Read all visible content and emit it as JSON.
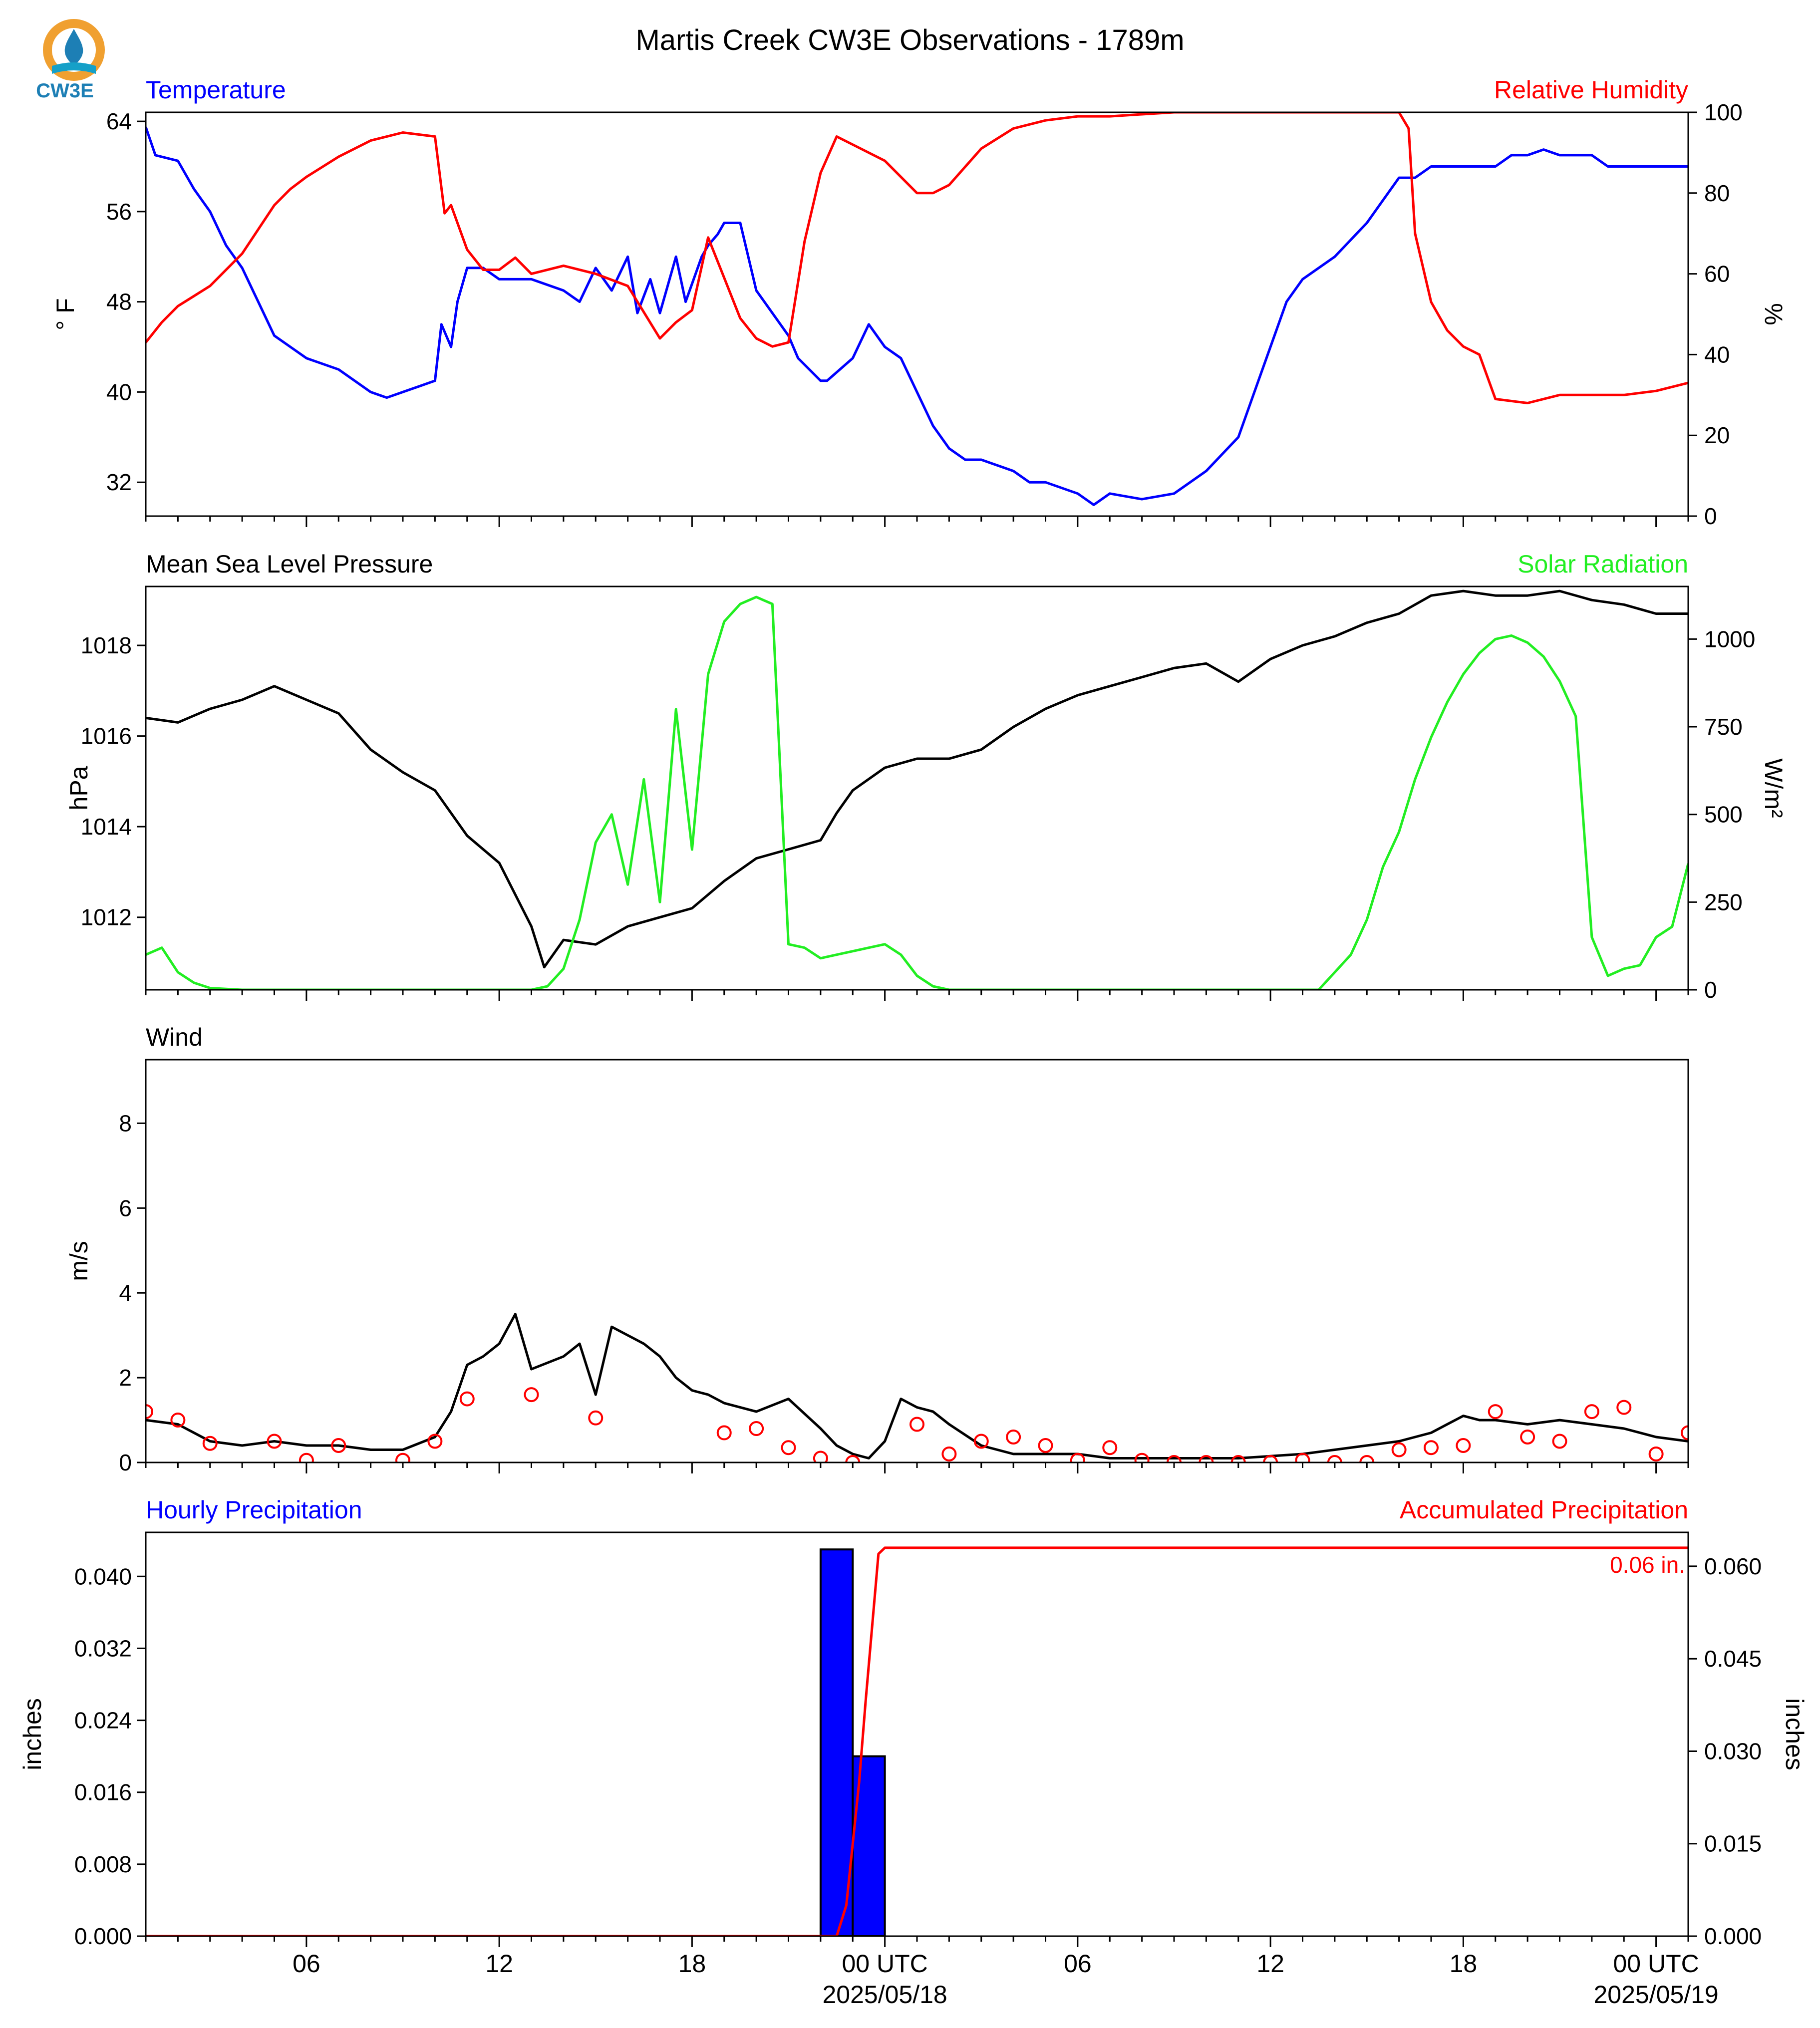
{
  "title": "Martis Creek CW3E Observations - 1789m",
  "logo": {
    "text": "CW3E",
    "colors": {
      "ring": "#f0a030",
      "drop": "#1d7fb5",
      "wave": "#15a0c8"
    }
  },
  "colors": {
    "temperature": "#0000ff",
    "humidity": "#ff0000",
    "pressure": "#000000",
    "solar": "#22ee22",
    "wind": "#000000",
    "gust": "#ff0000",
    "hourly_bar": "#0000ff",
    "accum": "#ff0000"
  },
  "time_axis": {
    "ticks": [
      {
        "hour": 6,
        "label": "06"
      },
      {
        "hour": 12,
        "label": "12"
      },
      {
        "hour": 18,
        "label": "18"
      },
      {
        "hour": 24,
        "label": "00 UTC",
        "date": "2025/05/18"
      },
      {
        "hour": 30,
        "label": "06"
      },
      {
        "hour": 36,
        "label": "12"
      },
      {
        "hour": 42,
        "label": "18"
      },
      {
        "hour": 48,
        "label": "00 UTC",
        "date": "2025/05/19"
      }
    ],
    "range_hours": [
      1,
      49
    ]
  },
  "panels": {
    "temp": {
      "left_title": "Temperature",
      "right_title": "Relative Humidity",
      "left_ylabel": "° F",
      "right_ylabel": "%",
      "left_ticks": [
        "32",
        "40",
        "48",
        "56",
        "64"
      ],
      "right_ticks": [
        "0",
        "20",
        "40",
        "60",
        "80",
        "100"
      ]
    },
    "pressure": {
      "left_title": "Mean Sea Level Pressure",
      "right_title": "Solar Radiation",
      "left_ylabel": "hPa",
      "right_ylabel": "W/m²",
      "left_ticks": [
        "1012",
        "1014",
        "1016",
        "1018"
      ],
      "right_ticks": [
        "0",
        "250",
        "500",
        "750",
        "1000"
      ]
    },
    "wind": {
      "left_title": "Wind",
      "left_ylabel": "m/s",
      "left_ticks": [
        "0",
        "2",
        "4",
        "6",
        "8"
      ]
    },
    "precip": {
      "left_title": "Hourly Precipitation",
      "right_title": "Accumulated Precipitation",
      "left_ylabel": "inches",
      "right_ylabel": "inches",
      "left_ticks": [
        "0.000",
        "0.008",
        "0.016",
        "0.024",
        "0.032",
        "0.040"
      ],
      "right_ticks": [
        "0.000",
        "0.015",
        "0.030",
        "0.045",
        "0.060"
      ],
      "total_label": "0.06 in."
    }
  },
  "chart_data": [
    {
      "type": "line",
      "title": "Temperature / Relative Humidity",
      "xlim": [
        1,
        49
      ],
      "ylim_left": [
        29,
        64.8
      ],
      "ylim_right": [
        0,
        100
      ],
      "series": [
        {
          "name": "Temperature",
          "axis": "left",
          "unit": "°F",
          "x": [
            1,
            1.3,
            2,
            2.5,
            3,
            3.5,
            4,
            4.5,
            5,
            5.5,
            6,
            7,
            8,
            8.5,
            9,
            9.5,
            10,
            10.2,
            10.5,
            10.7,
            11,
            11.5,
            12,
            13,
            14,
            14.5,
            15,
            15.5,
            16,
            16.3,
            16.7,
            17,
            17.5,
            17.8,
            18.3,
            18.5,
            18.8,
            19,
            19.5,
            20,
            21,
            21.3,
            22,
            22.2,
            23,
            23.5,
            24,
            24.5,
            25,
            25.5,
            26,
            26.5,
            27,
            28,
            28.5,
            29,
            30,
            30.5,
            31,
            32,
            33,
            34,
            35,
            35.5,
            36,
            36.5,
            37,
            38,
            39,
            39.5,
            40,
            40.5,
            41,
            41.5,
            42,
            43,
            43.5,
            44,
            44.5,
            45,
            46,
            46.5,
            47,
            47.5,
            48,
            49
          ],
          "y": [
            63.5,
            61,
            60.5,
            58,
            56,
            53,
            51,
            48,
            45,
            44,
            43,
            42,
            40,
            39.5,
            40,
            40.5,
            41,
            46,
            44,
            48,
            51,
            51,
            50,
            50,
            49,
            48,
            51,
            49,
            52,
            47,
            50,
            47,
            52,
            48,
            52,
            53,
            54,
            55,
            55,
            49,
            45,
            43,
            41,
            41,
            43,
            46,
            44,
            43,
            40,
            37,
            35,
            34,
            34,
            33,
            32,
            32,
            31,
            30,
            31,
            30.5,
            31,
            33,
            36,
            40,
            44,
            48,
            50,
            52,
            55,
            57,
            59,
            59,
            60,
            60,
            60,
            60,
            61,
            61,
            61.5,
            61,
            61,
            60,
            60,
            60,
            60,
            60
          ],
          "style": {
            "color": "#0000ff"
          }
        },
        {
          "name": "Relative Humidity",
          "axis": "right",
          "unit": "%",
          "x": [
            1,
            1.5,
            2,
            3,
            4,
            5,
            5.5,
            6,
            7,
            8,
            9,
            10,
            10.3,
            10.5,
            11,
            11.5,
            12,
            12.5,
            13,
            14,
            15,
            16,
            17,
            17.5,
            18,
            18.5,
            19,
            19.5,
            20,
            20.5,
            21,
            21.5,
            22,
            22.5,
            23,
            24,
            25,
            25.5,
            26,
            27,
            28,
            29,
            30,
            31,
            32,
            33,
            34,
            35,
            36,
            37,
            38,
            39,
            40,
            40.3,
            40.5,
            41,
            41.5,
            42,
            42.5,
            43,
            44,
            45,
            46,
            47,
            48,
            49
          ],
          "y": [
            43,
            48,
            52,
            57,
            65,
            77,
            81,
            84,
            89,
            93,
            95,
            94,
            75,
            77,
            66,
            61,
            61,
            64,
            60,
            62,
            60,
            57,
            44,
            48,
            51,
            69,
            59,
            49,
            44,
            42,
            43,
            68,
            85,
            94,
            92,
            88,
            80,
            80,
            82,
            91,
            96,
            98,
            99,
            99,
            99.5,
            100,
            100,
            100,
            100,
            100,
            100,
            100,
            100,
            96,
            70,
            53,
            46,
            42,
            40,
            29,
            28,
            30,
            30,
            30,
            31,
            33
          ],
          "style": {
            "color": "#ff0000"
          }
        }
      ]
    },
    {
      "type": "line",
      "title": "Mean Sea Level Pressure / Solar Radiation",
      "xlim": [
        1,
        49
      ],
      "ylim_left": [
        1010.4,
        1019.3
      ],
      "ylim_right": [
        0,
        1150
      ],
      "series": [
        {
          "name": "Mean Sea Level Pressure",
          "axis": "left",
          "unit": "hPa",
          "x": [
            1,
            2,
            3,
            4,
            5,
            6,
            7,
            8,
            9,
            10,
            11,
            12,
            13,
            13.4,
            14,
            15,
            16,
            17,
            18,
            19,
            20,
            21,
            22,
            22.5,
            23,
            24,
            25,
            26,
            27,
            28,
            29,
            30,
            31,
            32,
            33,
            34,
            35,
            36,
            37,
            38,
            39,
            40,
            41,
            42,
            43,
            44,
            45,
            46,
            47,
            48,
            49
          ],
          "y": [
            1016.4,
            1016.3,
            1016.6,
            1016.8,
            1017.1,
            1016.8,
            1016.5,
            1015.7,
            1015.2,
            1014.8,
            1013.8,
            1013.2,
            1011.8,
            1010.9,
            1011.5,
            1011.4,
            1011.8,
            1012.0,
            1012.2,
            1012.8,
            1013.3,
            1013.5,
            1013.7,
            1014.3,
            1014.8,
            1015.3,
            1015.5,
            1015.5,
            1015.7,
            1016.2,
            1016.6,
            1016.9,
            1017.1,
            1017.3,
            1017.5,
            1017.6,
            1017.2,
            1017.7,
            1018.0,
            1018.2,
            1018.5,
            1018.7,
            1019.1,
            1019.2,
            1019.1,
            1019.1,
            1019.2,
            1019.0,
            1018.9,
            1018.7,
            1018.7
          ],
          "style": {
            "color": "#000000"
          }
        },
        {
          "name": "Solar Radiation",
          "axis": "right",
          "unit": "W/m²",
          "x": [
            1,
            1.5,
            2,
            2.5,
            3,
            4,
            5,
            6,
            7,
            8,
            9,
            10,
            11,
            12,
            12.5,
            13,
            13.5,
            14,
            14.5,
            15,
            15.5,
            16,
            16.5,
            17,
            17.5,
            18,
            18.5,
            19,
            19.5,
            20,
            20.5,
            21,
            21.5,
            22,
            22.5,
            23,
            23.5,
            24,
            24.5,
            25,
            25.5,
            26,
            26.5,
            27,
            28,
            29,
            30,
            31,
            32,
            33,
            34,
            35,
            36,
            37,
            37.5,
            38,
            38.5,
            39,
            39.5,
            40,
            40.5,
            41,
            41.5,
            42,
            42.5,
            43,
            43.5,
            44,
            44.5,
            45,
            45.5,
            46,
            46.5,
            47,
            47.5,
            48,
            48.5,
            49
          ],
          "y": [
            100,
            120,
            50,
            20,
            5,
            0,
            0,
            0,
            0,
            0,
            0,
            0,
            0,
            0,
            0,
            0,
            10,
            60,
            200,
            420,
            500,
            300,
            600,
            250,
            800,
            400,
            900,
            1050,
            1100,
            1120,
            1100,
            130,
            120,
            90,
            100,
            110,
            120,
            130,
            100,
            40,
            10,
            0,
            0,
            0,
            0,
            0,
            0,
            0,
            0,
            0,
            0,
            0,
            0,
            0,
            0,
            50,
            100,
            200,
            350,
            450,
            600,
            720,
            820,
            900,
            960,
            1000,
            1010,
            990,
            950,
            880,
            780,
            150,
            40,
            60,
            70,
            150,
            180,
            360
          ],
          "style": {
            "color": "#22ee22"
          }
        }
      ]
    },
    {
      "type": "line",
      "title": "Wind",
      "xlim": [
        1,
        49
      ],
      "ylim": [
        0,
        9.5
      ],
      "series": [
        {
          "name": "Wind",
          "unit": "m/s",
          "x": [
            1,
            2,
            3,
            4,
            5,
            6,
            7,
            8,
            9,
            10,
            10.5,
            11,
            11.5,
            12,
            12.5,
            13,
            14,
            14.5,
            15,
            15.5,
            16,
            16.5,
            17,
            17.5,
            18,
            18.5,
            19,
            20,
            21,
            22,
            22.5,
            23,
            23.5,
            24,
            24.5,
            25,
            25.5,
            26,
            27,
            28,
            29,
            30,
            31,
            32,
            33,
            34,
            35,
            36,
            37,
            38,
            39,
            40,
            41,
            41.5,
            42,
            42.5,
            43,
            44,
            45,
            46,
            47,
            48,
            49
          ],
          "y": [
            1.0,
            0.9,
            0.5,
            0.4,
            0.5,
            0.4,
            0.4,
            0.3,
            0.3,
            0.6,
            1.2,
            2.3,
            2.5,
            2.8,
            3.5,
            2.2,
            2.5,
            2.8,
            1.6,
            3.2,
            3.0,
            2.8,
            2.5,
            2.0,
            1.7,
            1.6,
            1.4,
            1.2,
            1.5,
            0.8,
            0.4,
            0.2,
            0.1,
            0.5,
            1.5,
            1.3,
            1.2,
            0.9,
            0.4,
            0.2,
            0.2,
            0.2,
            0.1,
            0.1,
            0.1,
            0.1,
            0.1,
            0.15,
            0.2,
            0.3,
            0.4,
            0.5,
            0.7,
            0.9,
            1.1,
            1.0,
            1.0,
            0.9,
            1.0,
            0.9,
            0.8,
            0.6,
            0.5
          ],
          "style": {
            "color": "#000000"
          }
        },
        {
          "name": "Wind markers",
          "type": "scatter",
          "unit": "m/s",
          "x": [
            1,
            2,
            3,
            5,
            6,
            7,
            9,
            10,
            11,
            13,
            15,
            19,
            20,
            21,
            22,
            23,
            25,
            26,
            27,
            28,
            29,
            30,
            31,
            32,
            33,
            34,
            35,
            36,
            37,
            38,
            39,
            40,
            41,
            42,
            43,
            44,
            45,
            46,
            47,
            48,
            49
          ],
          "y": [
            1.2,
            1.0,
            0.45,
            0.5,
            0.05,
            0.4,
            0.05,
            0.5,
            1.5,
            1.6,
            1.05,
            0.7,
            0.8,
            0.35,
            0.1,
            0.0,
            0.9,
            0.2,
            0.5,
            0.6,
            0.4,
            0.05,
            0.35,
            0.05,
            0.0,
            0.0,
            0.0,
            0.0,
            0.05,
            0.0,
            0.0,
            0.3,
            0.35,
            0.4,
            1.2,
            0.6,
            0.5,
            1.2,
            1.3,
            0.2,
            0.7
          ],
          "style": {
            "color": "#ff0000"
          }
        }
      ]
    },
    {
      "type": "bar",
      "title": "Hourly Precipitation / Accumulated Precipitation",
      "xlim": [
        1,
        49
      ],
      "ylim_left": [
        0,
        0.0449
      ],
      "ylim_right": [
        0,
        0.0655
      ],
      "series": [
        {
          "name": "Hourly Precipitation",
          "axis": "left",
          "unit": "inches",
          "x": [
            22.5,
            23.5
          ],
          "values": [
            0.043,
            0.02
          ],
          "style": {
            "color": "#0000ff"
          }
        },
        {
          "name": "Accumulated Precipitation",
          "axis": "right",
          "unit": "inches",
          "type": "line",
          "x": [
            1,
            22.3,
            22.5,
            22.8,
            23.0,
            23.2,
            23.4,
            23.6,
            23.8,
            24,
            49
          ],
          "values": [
            0,
            0,
            0,
            0.005,
            0.015,
            0.025,
            0.038,
            0.05,
            0.062,
            0.063,
            0.063
          ],
          "style": {
            "color": "#ff0000"
          }
        }
      ]
    }
  ]
}
